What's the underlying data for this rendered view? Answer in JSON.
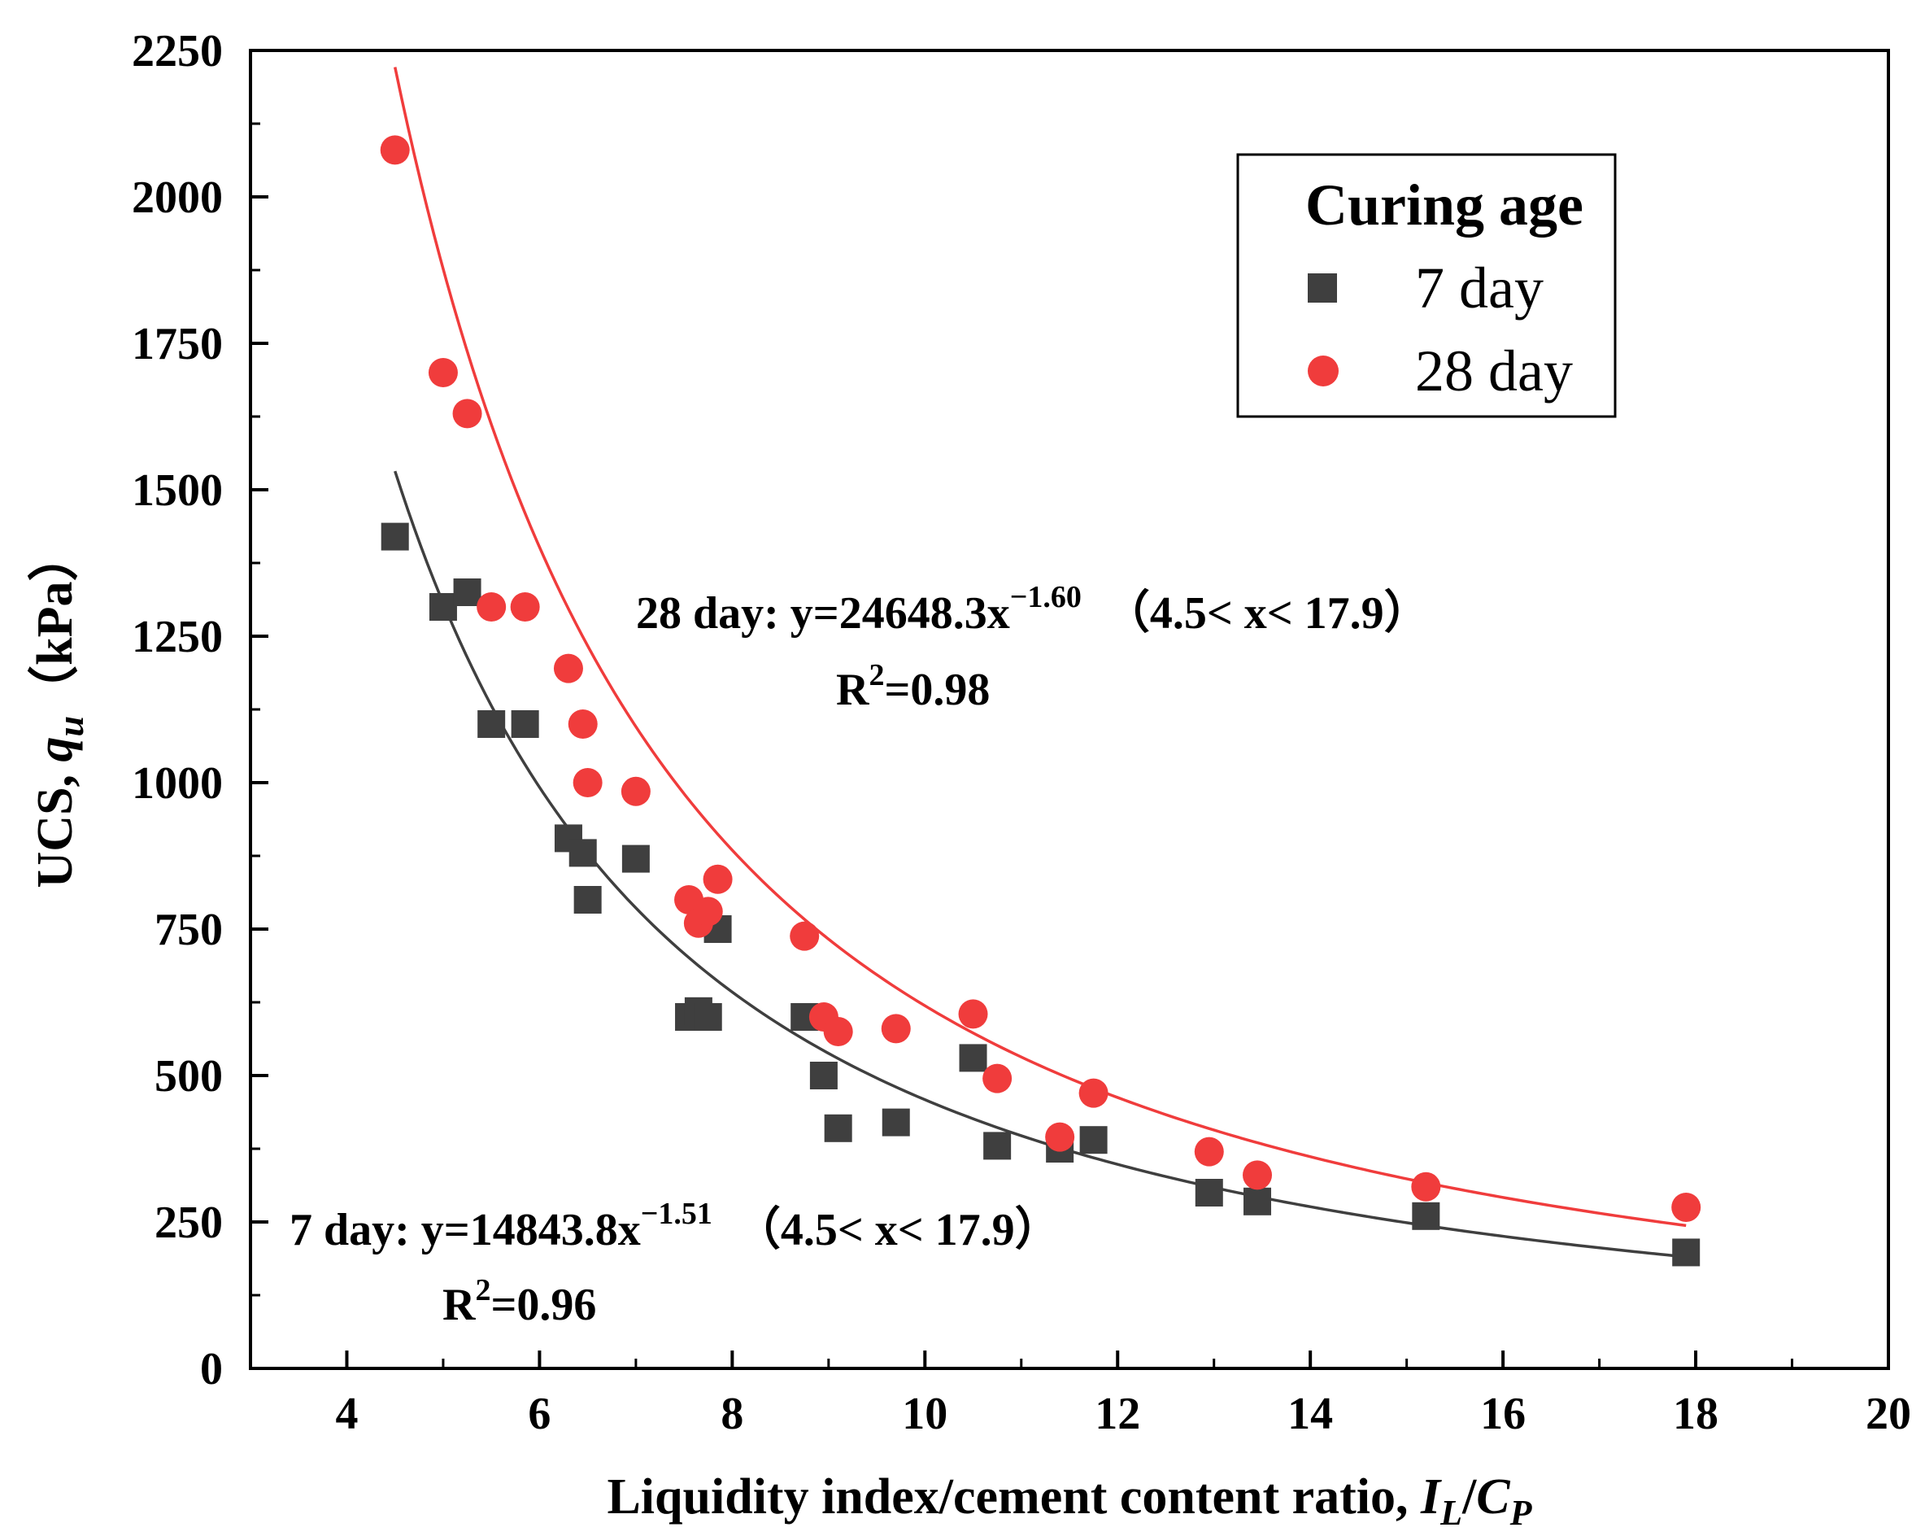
{
  "chart_data": {
    "type": "scatter",
    "xlabel": {
      "main": "Liquidity index/cement content ratio, ",
      "var1": "I",
      "sub1": "L",
      "slash": "/",
      "var2": "C",
      "sub2": "P"
    },
    "ylabel": {
      "main": "UCS, ",
      "var": "q",
      "sub": "u",
      "unit": "（kPa）"
    },
    "xlim": [
      3,
      20
    ],
    "ylim": [
      0,
      2250
    ],
    "xticks": [
      4,
      6,
      8,
      10,
      12,
      14,
      16,
      18,
      20
    ],
    "yticks": [
      0,
      250,
      500,
      750,
      1000,
      1250,
      1500,
      1750,
      2000,
      2250
    ],
    "legend": {
      "title": "Curing age",
      "placement": "top-right"
    },
    "series": [
      {
        "name": "7 day",
        "marker": "square",
        "color": "#3f3f3f",
        "line_color": "#3f3f3f",
        "fit": {
          "a": 14843.8,
          "b": -1.51,
          "x_min": 4.5,
          "x_max": 17.9
        },
        "points": [
          {
            "x": 4.5,
            "y": 1420
          },
          {
            "x": 5.0,
            "y": 1300
          },
          {
            "x": 5.25,
            "y": 1325
          },
          {
            "x": 5.5,
            "y": 1100
          },
          {
            "x": 5.85,
            "y": 1100
          },
          {
            "x": 6.3,
            "y": 905
          },
          {
            "x": 6.45,
            "y": 880
          },
          {
            "x": 6.5,
            "y": 800
          },
          {
            "x": 7.0,
            "y": 870
          },
          {
            "x": 7.55,
            "y": 600
          },
          {
            "x": 7.65,
            "y": 610
          },
          {
            "x": 7.75,
            "y": 600
          },
          {
            "x": 7.85,
            "y": 750
          },
          {
            "x": 8.75,
            "y": 600
          },
          {
            "x": 8.95,
            "y": 500
          },
          {
            "x": 9.1,
            "y": 410
          },
          {
            "x": 9.7,
            "y": 420
          },
          {
            "x": 10.5,
            "y": 530
          },
          {
            "x": 10.75,
            "y": 380
          },
          {
            "x": 11.4,
            "y": 375
          },
          {
            "x": 11.75,
            "y": 390
          },
          {
            "x": 12.95,
            "y": 300
          },
          {
            "x": 13.45,
            "y": 285
          },
          {
            "x": 15.2,
            "y": 260
          },
          {
            "x": 17.9,
            "y": 198
          }
        ]
      },
      {
        "name": "28 day",
        "marker": "circle",
        "color": "#f03c3c",
        "line_color": "#f03c3c",
        "fit": {
          "a": 24648.3,
          "b": -1.6,
          "x_min": 4.5,
          "x_max": 17.9
        },
        "points": [
          {
            "x": 4.5,
            "y": 2080
          },
          {
            "x": 5.0,
            "y": 1700
          },
          {
            "x": 5.25,
            "y": 1630
          },
          {
            "x": 5.5,
            "y": 1300
          },
          {
            "x": 5.85,
            "y": 1300
          },
          {
            "x": 6.3,
            "y": 1195
          },
          {
            "x": 6.45,
            "y": 1100
          },
          {
            "x": 6.5,
            "y": 1000
          },
          {
            "x": 7.0,
            "y": 985
          },
          {
            "x": 7.55,
            "y": 800
          },
          {
            "x": 7.65,
            "y": 760
          },
          {
            "x": 7.75,
            "y": 780
          },
          {
            "x": 7.85,
            "y": 835
          },
          {
            "x": 8.75,
            "y": 738
          },
          {
            "x": 8.95,
            "y": 600
          },
          {
            "x": 9.1,
            "y": 575
          },
          {
            "x": 9.7,
            "y": 580
          },
          {
            "x": 10.5,
            "y": 605
          },
          {
            "x": 10.75,
            "y": 495
          },
          {
            "x": 11.4,
            "y": 395
          },
          {
            "x": 11.75,
            "y": 470
          },
          {
            "x": 12.95,
            "y": 370
          },
          {
            "x": 13.45,
            "y": 330
          },
          {
            "x": 15.2,
            "y": 310
          },
          {
            "x": 17.9,
            "y": 275
          }
        ]
      }
    ],
    "annotations": {
      "fit28": {
        "label": "28 day: y=24648.3x",
        "exponent": "−1.60",
        "range": "（4.5< x< 17.9）",
        "r2_prefix": "R",
        "r2_exp": "2",
        "r2_value": "=0.98"
      },
      "fit7": {
        "label": "7 day: y=14843.8x",
        "exponent": "−1.51",
        "range": "（4.5< x< 17.9）",
        "r2_prefix": "R",
        "r2_exp": "2",
        "r2_value": "=0.96"
      }
    }
  }
}
